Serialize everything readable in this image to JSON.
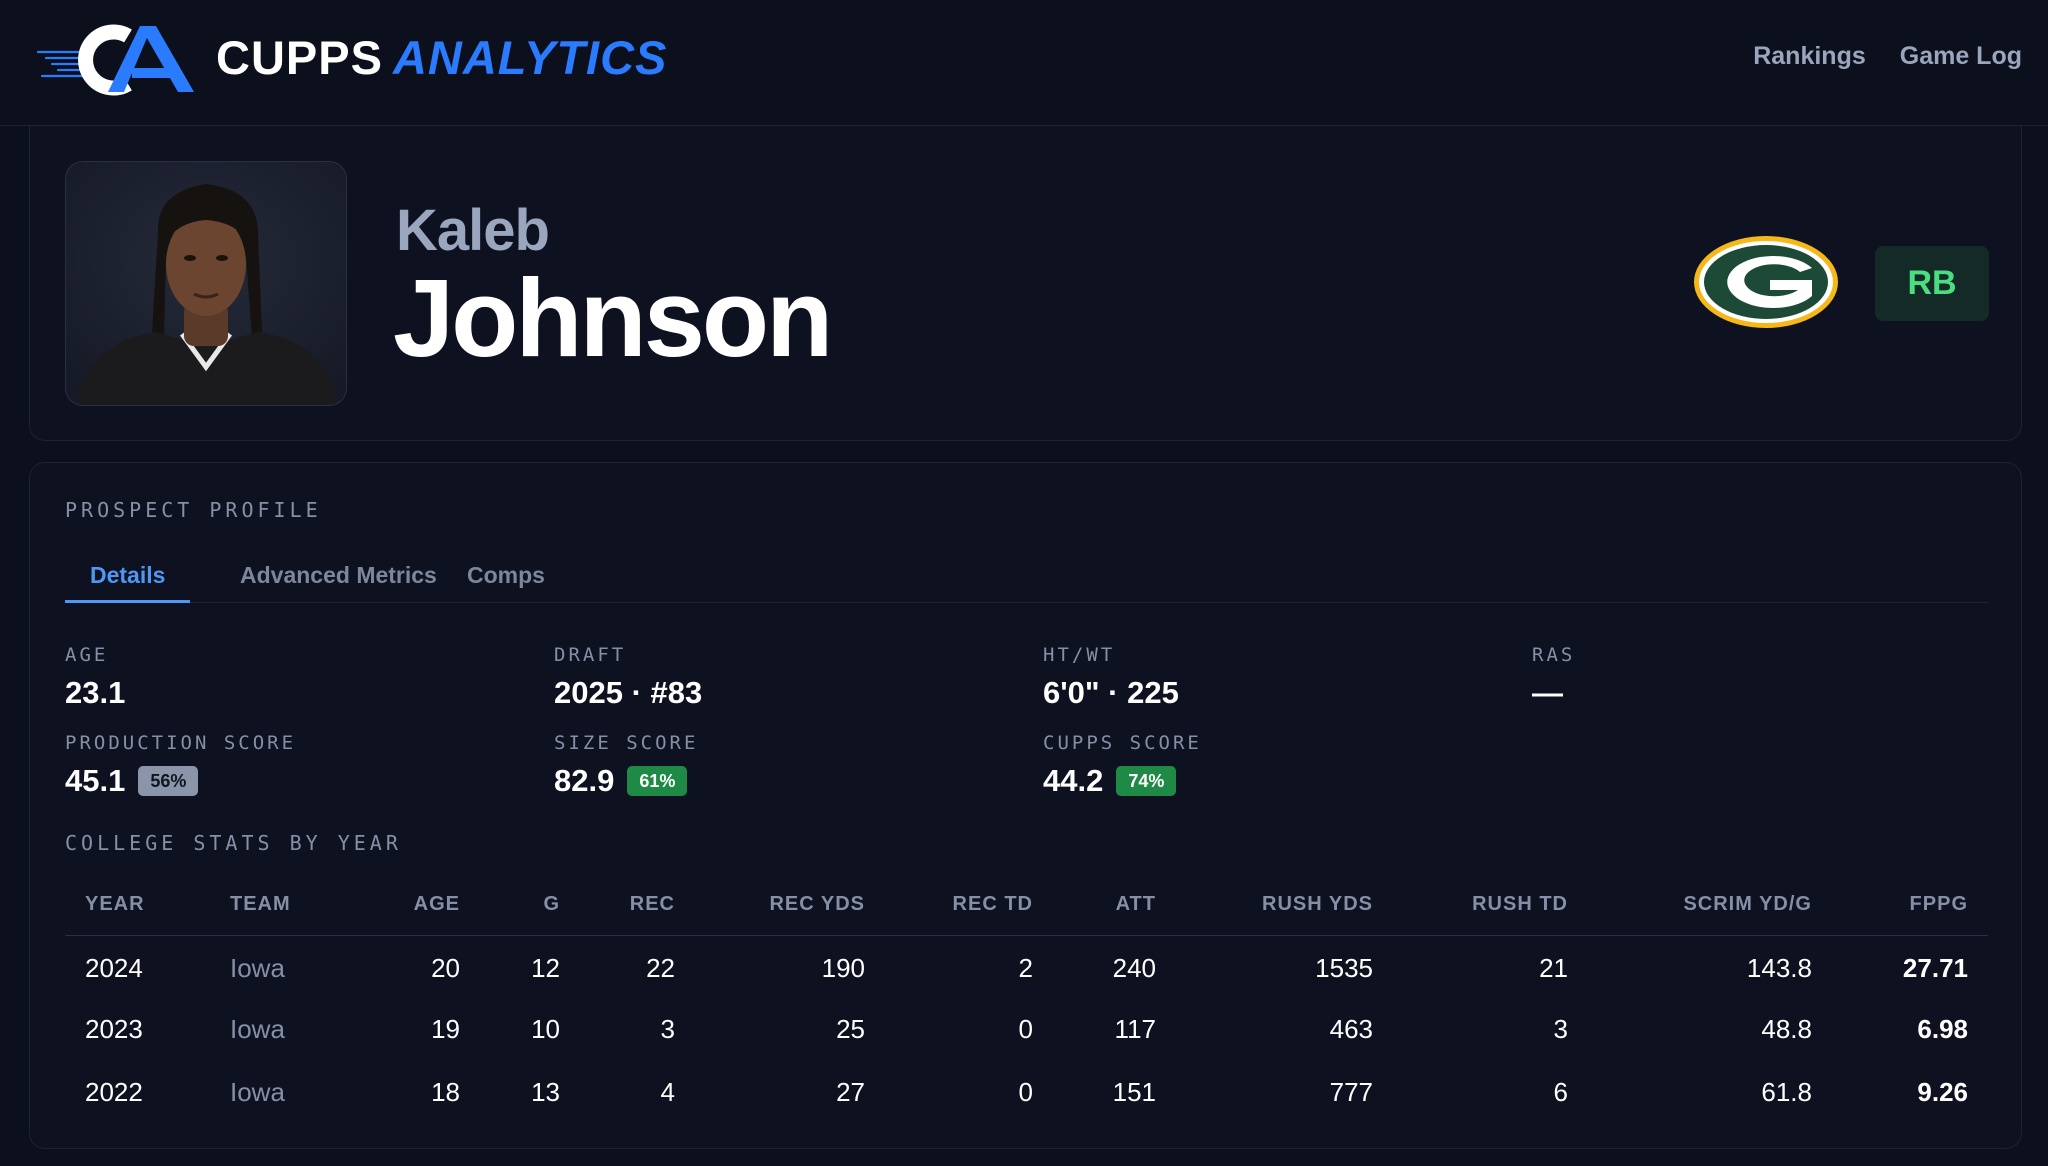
{
  "brand": {
    "name_white": "CUPPS",
    "name_blue": "ANALYTICS",
    "accent": "#2b7bff"
  },
  "nav": [
    {
      "label": "Rankings"
    },
    {
      "label": "Game Log"
    }
  ],
  "player": {
    "first_name": "Kaleb",
    "last_name": "Johnson",
    "position": "RB",
    "team_logo": "green-bay-packers-g-logo"
  },
  "profile": {
    "section_label": "PROSPECT PROFILE",
    "tabs": [
      {
        "label": "Details",
        "active": true
      },
      {
        "label": "Advanced Metrics",
        "active": false
      },
      {
        "label": "Comps",
        "active": false
      }
    ],
    "stats": {
      "age": {
        "label": "AGE",
        "value": "23.1"
      },
      "draft": {
        "label": "DRAFT",
        "value": "2025 · #83"
      },
      "htwt": {
        "label": "HT/WT",
        "value": "6'0\" · 225"
      },
      "ras": {
        "label": "RAS",
        "value": "—"
      },
      "production": {
        "label": "PRODUCTION SCORE",
        "value": "45.1",
        "pct": "56%"
      },
      "size": {
        "label": "SIZE SCORE",
        "value": "82.9",
        "pct": "61%"
      },
      "cupps": {
        "label": "CUPPS SCORE",
        "value": "44.2",
        "pct": "74%"
      }
    },
    "college_label": "COLLEGE STATS BY YEAR",
    "table": {
      "headers": [
        "YEAR",
        "TEAM",
        "AGE",
        "G",
        "REC",
        "REC YDS",
        "REC TD",
        "ATT",
        "RUSH YDS",
        "RUSH TD",
        "SCRIM YD/G",
        "FPPG"
      ],
      "rows": [
        [
          "2024",
          "Iowa",
          "20",
          "12",
          "22",
          "190",
          "2",
          "240",
          "1535",
          "21",
          "143.8",
          "27.71"
        ],
        [
          "2023",
          "Iowa",
          "19",
          "10",
          "3",
          "25",
          "0",
          "117",
          "463",
          "3",
          "48.8",
          "6.98"
        ],
        [
          "2022",
          "Iowa",
          "18",
          "13",
          "4",
          "27",
          "0",
          "151",
          "777",
          "6",
          "61.8",
          "9.26"
        ]
      ]
    }
  }
}
